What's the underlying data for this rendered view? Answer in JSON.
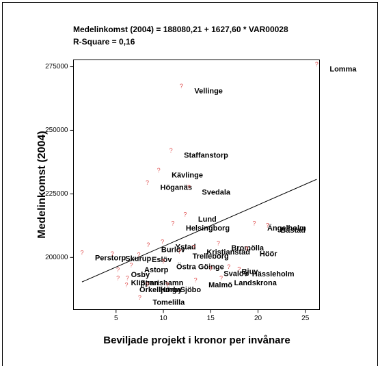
{
  "chart_data": {
    "type": "scatter",
    "title": "Medelinkomst (2004) = 188080,21 + 1627,60 * VAR00028",
    "subtitle": "R-Square = 0,16",
    "x_label": "Beviljade projekt i kronor per invånare",
    "y_label": "Medelinkomst (2004)",
    "marker": "?",
    "marker_color": "#e05050",
    "line_color": "#000000",
    "fit": {
      "intercept": 188080.21,
      "slope": 1627.6
    },
    "xlim": [
      0.5,
      26.5
    ],
    "xticks": [
      5,
      10,
      15,
      20,
      25
    ],
    "ylim": [
      179500,
      277700
    ],
    "yticks": [
      200000,
      225000,
      250000,
      275000
    ],
    "labels": [
      "Lomma",
      "Vellinge",
      "Staffanstorp",
      "Kävlinge",
      "Höganäs",
      "Svedala",
      "Lund",
      "Helsingborg",
      "Ängelholm",
      "Båstad",
      "Bromölla",
      "Ystad",
      "Burlöv",
      "Kristianstad",
      "Höör",
      "Trelleborg",
      "Perstorp",
      "Skurup",
      "Eslöv",
      "Östra Göinge",
      "Svalöv",
      "Bjuv",
      "Hässleholm",
      "Astorp",
      "Osby",
      "Malmö",
      "Landskrona",
      "Klippan",
      "Simrishamn",
      "Örkelljunga",
      "Hörby",
      "Sjöbo",
      "Tomelilla"
    ],
    "x": [
      26.2,
      11.9,
      10.8,
      9.5,
      8.3,
      12.7,
      12.3,
      11.0,
      19.6,
      21.0,
      15.8,
      9.9,
      8.4,
      13.2,
      18.8,
      11.7,
      1.4,
      4.6,
      7.4,
      10.0,
      15.0,
      16.9,
      18.0,
      6.6,
      5.2,
      13.4,
      16.1,
      5.2,
      6.2,
      6.1,
      8.3,
      10.4,
      7.5
    ],
    "values": [
      275800,
      267200,
      241900,
      234100,
      229300,
      227400,
      216700,
      213200,
      213200,
      212400,
      205400,
      205900,
      204800,
      203800,
      203200,
      202200,
      201600,
      201300,
      200800,
      198100,
      195400,
      196200,
      195200,
      196800,
      194900,
      190900,
      191700,
      191700,
      191700,
      189000,
      189000,
      189000,
      184100
    ]
  }
}
